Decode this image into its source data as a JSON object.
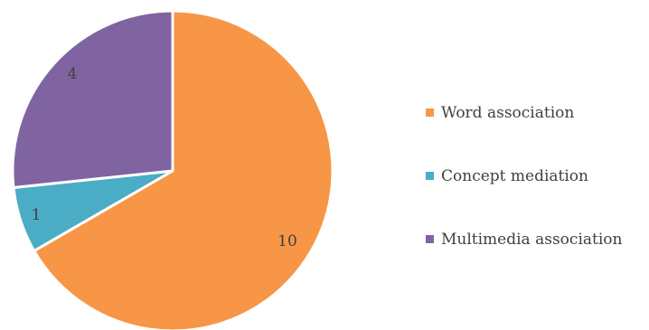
{
  "chart_data": {
    "type": "pie",
    "title": "",
    "categories": [
      "Word association",
      "Concept mediation",
      "Multimedia association"
    ],
    "values": [
      10,
      1,
      4
    ],
    "colors": [
      "#F79646",
      "#4BACC6",
      "#8064A2"
    ],
    "start_angle_deg": 0,
    "direction": "clockwise",
    "data_labels": [
      "10",
      "1",
      "4"
    ],
    "legend_position": "right"
  }
}
